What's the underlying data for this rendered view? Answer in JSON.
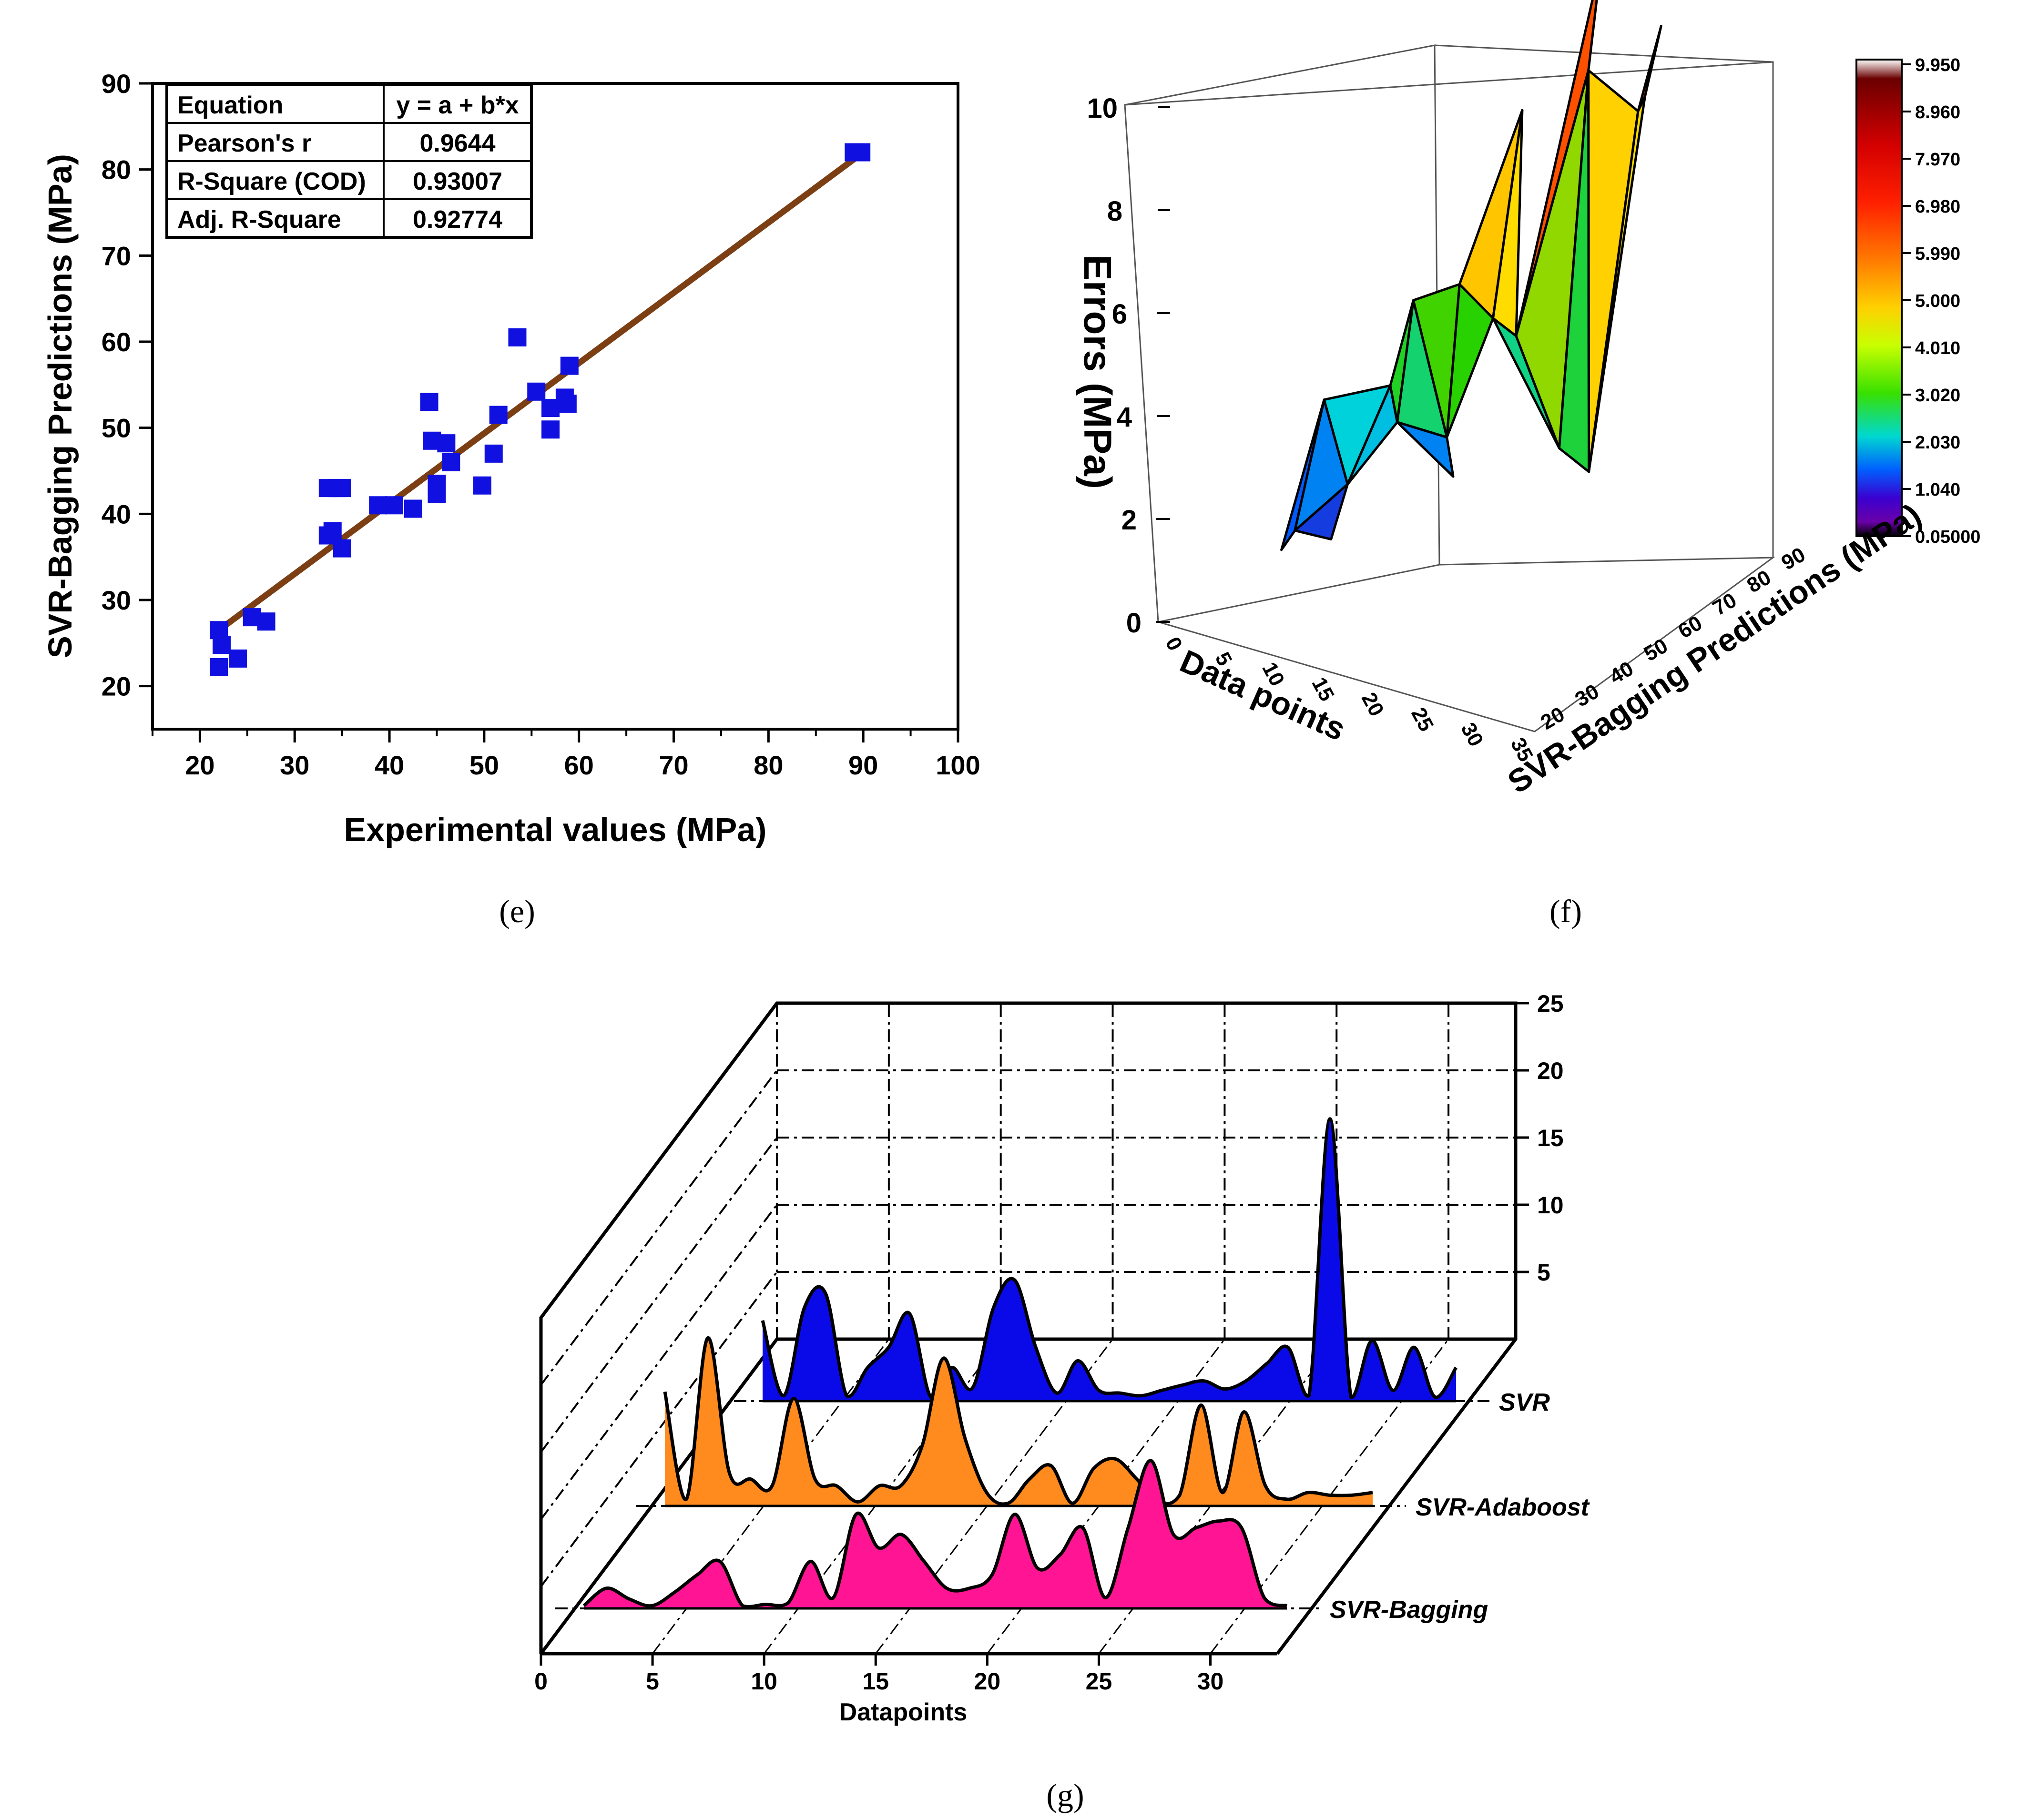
{
  "chart_data": [
    {
      "type": "scatter",
      "panel": "(e)",
      "xlabel": "Experimental values (MPa)",
      "ylabel": "SVR-Bagging Predictions (MPa)",
      "xlim": [
        15,
        100
      ],
      "ylim": [
        15,
        90
      ],
      "xticks": [
        20,
        30,
        40,
        50,
        60,
        70,
        80,
        90,
        100
      ],
      "yticks": [
        20,
        30,
        40,
        50,
        60,
        70,
        80,
        90
      ],
      "points": [
        [
          22,
          26.5
        ],
        [
          22.3,
          24.8
        ],
        [
          22,
          22.2
        ],
        [
          24,
          23.2
        ],
        [
          25.5,
          28
        ],
        [
          27,
          27.5
        ],
        [
          33.5,
          43
        ],
        [
          34.5,
          43
        ],
        [
          35,
          43
        ],
        [
          33.5,
          37.5
        ],
        [
          34,
          38
        ],
        [
          35,
          36
        ],
        [
          38.8,
          41
        ],
        [
          40.5,
          41
        ],
        [
          42.5,
          40.6
        ],
        [
          44.2,
          53
        ],
        [
          44.5,
          48.5
        ],
        [
          45,
          42.3
        ],
        [
          45,
          43.5
        ],
        [
          46,
          48.2
        ],
        [
          46.5,
          46
        ],
        [
          49.8,
          43.3
        ],
        [
          51,
          47
        ],
        [
          51.5,
          51.5
        ],
        [
          53.5,
          60.5
        ],
        [
          55.5,
          54.2
        ],
        [
          57,
          52.3
        ],
        [
          57,
          49.8
        ],
        [
          58.5,
          53.5
        ],
        [
          58.8,
          52.8
        ],
        [
          59,
          57.2
        ],
        [
          89,
          82
        ],
        [
          89.8,
          82
        ]
      ],
      "fit": {
        "x": [
          22,
          90
        ],
        "y": [
          26.5,
          82
        ]
      },
      "table": {
        "rows": [
          [
            "Equation",
            "y = a + b*x"
          ],
          [
            "Pearson's r",
            "0.9644"
          ],
          [
            "R-Square (COD)",
            "0.93007"
          ],
          [
            "Adj. R-Square",
            "0.92774"
          ]
        ]
      },
      "colors": {
        "points": "#1010e0",
        "fit": "#7b3f13"
      }
    },
    {
      "type": "surface3d",
      "panel": "(f)",
      "zlabel": "Errors (MPa)",
      "xlabel": "Data points",
      "ylabel": "SVR-Bagging Predictions (MPa)",
      "zticks": [
        0,
        2,
        4,
        6,
        8,
        10
      ],
      "xticks": [
        0,
        5,
        10,
        15,
        20,
        25,
        30,
        35
      ],
      "yticks": [
        20,
        30,
        40,
        50,
        60,
        70,
        80,
        90
      ],
      "colorbar": [
        "9.950",
        "8.960",
        "7.970",
        "6.980",
        "5.990",
        "5.000",
        "4.010",
        "3.020",
        "2.030",
        "1.040",
        "0.05000"
      ],
      "colorbar_colors": [
        "#ffffff",
        "#6b0000",
        "#d40000",
        "#ff2000",
        "#ff7a00",
        "#ffd000",
        "#c8ff00",
        "#38e000",
        "#00d8d0",
        "#0060ff",
        "#3a00d0",
        "#6a00a8",
        "#000000"
      ],
      "vertices": [
        [
          0,
          0.5,
          30
        ],
        [
          1,
          3,
          40
        ],
        [
          2,
          1,
          28
        ],
        [
          3,
          0.5,
          36
        ],
        [
          4,
          1.5,
          38
        ],
        [
          5,
          3,
          48
        ],
        [
          6,
          4.5,
          52
        ],
        [
          7,
          2.5,
          44
        ],
        [
          8,
          4.5,
          60
        ],
        [
          9,
          1,
          55
        ],
        [
          10,
          2,
          50
        ],
        [
          11,
          7.5,
          70
        ],
        [
          12,
          4,
          58
        ],
        [
          13,
          3.5,
          62
        ],
        [
          14,
          9.8,
          85
        ],
        [
          15,
          8,
          78
        ],
        [
          16,
          1.2,
          66
        ],
        [
          17,
          0.5,
          72
        ],
        [
          18,
          7,
          84
        ],
        [
          19,
          8.5,
          88
        ],
        [
          20,
          7.5,
          80
        ]
      ]
    },
    {
      "type": "area3d",
      "panel": "(g)",
      "xlabel": "Datapoints",
      "xticks": [
        0,
        5,
        10,
        15,
        20,
        25,
        30
      ],
      "zticks": [
        5,
        10,
        15,
        20,
        25
      ],
      "series": [
        {
          "name": "SVR",
          "color": "#0a0ae8",
          "values": [
            6,
            0.4,
            7,
            8,
            0.4,
            2.5,
            4,
            6.5,
            0.3,
            2.5,
            1,
            7,
            9,
            4,
            0.6,
            3,
            0.8,
            0.6,
            0.4,
            0.8,
            1.2,
            1.5,
            0.9,
            1.5,
            2.8,
            4,
            0.4,
            21,
            0.3,
            4.5,
            0.8,
            4,
            0.3,
            2.5
          ]
        },
        {
          "name": "SVR-Adaboost",
          "color": "#ff8a1e",
          "values": [
            8.5,
            0.5,
            12.5,
            2.5,
            2,
            1.5,
            8,
            2,
            1.5,
            0.3,
            1.5,
            1.5,
            4.5,
            11,
            5,
            1,
            0.2,
            2,
            3,
            0.2,
            2.8,
            3.5,
            2,
            0.3,
            0.8,
            7.5,
            1,
            7,
            1.5,
            0.5,
            1,
            0.8,
            0.8,
            1
          ]
        },
        {
          "name": "SVR-Bagging",
          "color": "#ff1494",
          "values": [
            0.2,
            1.5,
            0.7,
            0.2,
            1.2,
            2.5,
            3.5,
            0.2,
            0.3,
            0.4,
            3.5,
            0.8,
            7,
            4.5,
            5.5,
            3.5,
            1.5,
            1.5,
            2.5,
            7,
            3,
            4,
            6,
            0.8,
            6,
            11,
            5.5,
            6,
            6.5,
            6,
            0.8,
            0.2
          ]
        }
      ]
    }
  ],
  "captions": {
    "e": "(e)",
    "f": "(f)",
    "g": "(g)"
  }
}
